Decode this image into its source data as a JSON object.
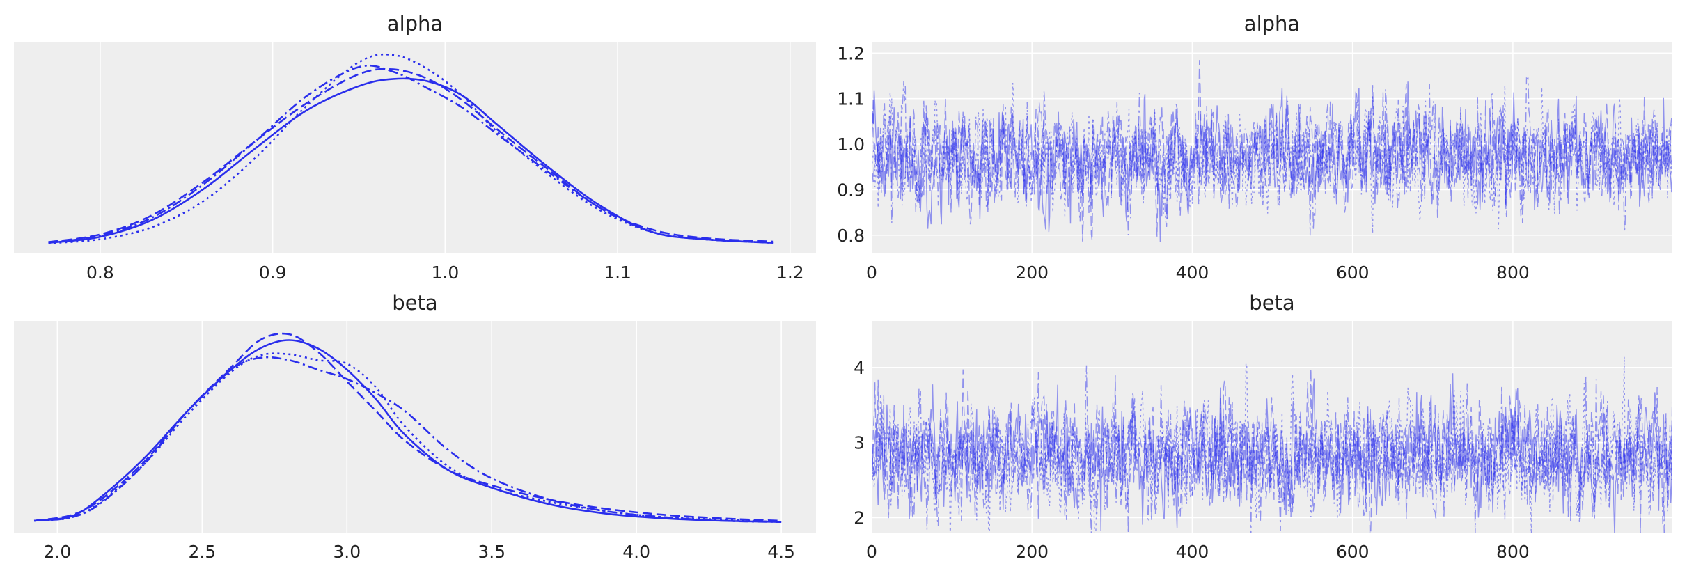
{
  "chart_data": [
    {
      "type": "line",
      "title": "alpha",
      "xlabel": "",
      "ylabel": "",
      "xlim": [
        0.75,
        1.215
      ],
      "x_ticks": [
        0.8,
        0.9,
        1.0,
        1.1,
        1.2
      ],
      "x_tick_labels": [
        "0.8",
        "0.9",
        "1.0",
        "1.1",
        "1.2"
      ],
      "y_ticks_shown": false,
      "grid": "vertical",
      "color": "#2a2eec",
      "series": [
        {
          "line_style": "solid",
          "x": [
            0.77,
            0.8,
            0.83,
            0.86,
            0.89,
            0.92,
            0.95,
            0.97,
            0.99,
            1.01,
            1.03,
            1.06,
            1.09,
            1.12,
            1.15,
            1.19
          ],
          "density": [
            0.05,
            0.3,
            1.0,
            2.3,
            4.0,
            5.6,
            6.6,
            6.9,
            6.8,
            6.2,
            5.0,
            3.2,
            1.6,
            0.5,
            0.2,
            0.05
          ]
        },
        {
          "line_style": "dashed",
          "x": [
            0.77,
            0.8,
            0.83,
            0.86,
            0.89,
            0.92,
            0.95,
            0.97,
            0.99,
            1.01,
            1.03,
            1.06,
            1.09,
            1.12,
            1.15,
            1.19
          ],
          "density": [
            0.08,
            0.4,
            1.2,
            2.6,
            4.3,
            5.9,
            7.1,
            7.3,
            6.9,
            6.0,
            4.8,
            3.1,
            1.5,
            0.6,
            0.25,
            0.1
          ]
        },
        {
          "line_style": "dotted",
          "x": [
            0.77,
            0.8,
            0.83,
            0.86,
            0.89,
            0.92,
            0.95,
            0.97,
            0.99,
            1.01,
            1.03,
            1.06,
            1.09,
            1.12,
            1.15,
            1.19
          ],
          "density": [
            0.03,
            0.2,
            0.7,
            1.8,
            3.6,
            5.8,
            7.6,
            7.9,
            7.3,
            6.2,
            4.7,
            2.9,
            1.4,
            0.5,
            0.2,
            0.05
          ]
        },
        {
          "line_style": "dashdot",
          "x": [
            0.77,
            0.8,
            0.83,
            0.86,
            0.89,
            0.92,
            0.95,
            0.97,
            0.99,
            1.01,
            1.03,
            1.06,
            1.09,
            1.12,
            1.15,
            1.19
          ],
          "density": [
            0.05,
            0.35,
            1.1,
            2.5,
            4.3,
            6.2,
            7.4,
            7.2,
            6.5,
            5.7,
            4.6,
            3.0,
            1.5,
            0.5,
            0.2,
            0.05
          ]
        }
      ]
    },
    {
      "type": "line",
      "title": "alpha",
      "xlabel": "",
      "ylabel": "",
      "xlim": [
        0,
        999
      ],
      "ylim": [
        0.76,
        1.225
      ],
      "x_ticks": [
        0,
        200,
        400,
        600,
        800
      ],
      "x_tick_labels": [
        "0",
        "200",
        "400",
        "600",
        "800"
      ],
      "y_ticks": [
        0.8,
        0.9,
        1.0,
        1.1,
        1.2
      ],
      "y_tick_labels": [
        "0.8",
        "0.9",
        "1.0",
        "1.1",
        "1.2"
      ],
      "grid": "both",
      "color": "#2a2eec",
      "series": [
        {
          "line_style": "solid",
          "n_draws": 1000,
          "center": 0.97,
          "spread": 0.055
        },
        {
          "line_style": "dashed",
          "n_draws": 1000,
          "center": 0.97,
          "spread": 0.055
        },
        {
          "line_style": "dotted",
          "n_draws": 1000,
          "center": 0.97,
          "spread": 0.055
        },
        {
          "line_style": "dashdot",
          "n_draws": 1000,
          "center": 0.97,
          "spread": 0.055
        }
      ]
    },
    {
      "type": "line",
      "title": "beta",
      "xlabel": "",
      "ylabel": "",
      "xlim": [
        1.85,
        4.62
      ],
      "x_ticks": [
        2.0,
        2.5,
        3.0,
        3.5,
        4.0,
        4.5
      ],
      "x_tick_labels": [
        "2.0",
        "2.5",
        "3.0",
        "3.5",
        "4.0",
        "4.5"
      ],
      "y_ticks_shown": false,
      "grid": "vertical",
      "color": "#2a2eec",
      "series": [
        {
          "line_style": "solid",
          "x": [
            1.92,
            2.05,
            2.15,
            2.3,
            2.45,
            2.6,
            2.7,
            2.8,
            2.9,
            3.0,
            3.1,
            3.2,
            3.35,
            3.5,
            3.7,
            3.9,
            4.1,
            4.3,
            4.5
          ],
          "density": [
            0.02,
            0.06,
            0.22,
            0.55,
            0.95,
            1.3,
            1.48,
            1.55,
            1.48,
            1.3,
            1.05,
            0.75,
            0.45,
            0.3,
            0.16,
            0.08,
            0.04,
            0.02,
            0.01
          ]
        },
        {
          "line_style": "dashed",
          "x": [
            1.92,
            2.05,
            2.15,
            2.3,
            2.45,
            2.6,
            2.7,
            2.8,
            2.9,
            3.0,
            3.1,
            3.2,
            3.35,
            3.5,
            3.7,
            3.9,
            4.1,
            4.3,
            4.5
          ],
          "density": [
            0.02,
            0.07,
            0.2,
            0.52,
            0.95,
            1.32,
            1.55,
            1.6,
            1.45,
            1.2,
            0.95,
            0.7,
            0.45,
            0.32,
            0.2,
            0.12,
            0.07,
            0.04,
            0.02
          ]
        },
        {
          "line_style": "dotted",
          "x": [
            1.92,
            2.05,
            2.15,
            2.3,
            2.45,
            2.6,
            2.7,
            2.8,
            2.9,
            3.0,
            3.1,
            3.2,
            3.35,
            3.5,
            3.7,
            3.9,
            4.1,
            4.3,
            4.5
          ],
          "density": [
            0.02,
            0.05,
            0.18,
            0.5,
            0.92,
            1.28,
            1.42,
            1.43,
            1.38,
            1.35,
            1.15,
            0.82,
            0.48,
            0.3,
            0.18,
            0.1,
            0.05,
            0.03,
            0.01
          ]
        },
        {
          "line_style": "dashdot",
          "x": [
            1.92,
            2.05,
            2.15,
            2.3,
            2.45,
            2.6,
            2.7,
            2.8,
            2.9,
            3.0,
            3.1,
            3.2,
            3.35,
            3.5,
            3.7,
            3.9,
            4.1,
            4.3,
            4.5
          ],
          "density": [
            0.02,
            0.05,
            0.17,
            0.5,
            0.95,
            1.3,
            1.4,
            1.38,
            1.3,
            1.22,
            1.1,
            0.95,
            0.62,
            0.38,
            0.2,
            0.1,
            0.05,
            0.02,
            0.01
          ]
        }
      ]
    },
    {
      "type": "line",
      "title": "beta",
      "xlabel": "",
      "ylabel": "",
      "xlim": [
        0,
        999
      ],
      "ylim": [
        1.8,
        4.62
      ],
      "x_ticks": [
        0,
        200,
        400,
        600,
        800
      ],
      "x_tick_labels": [
        "0",
        "200",
        "400",
        "600",
        "800"
      ],
      "y_ticks": [
        2,
        3,
        4
      ],
      "y_tick_labels": [
        "2",
        "3",
        "4"
      ],
      "grid": "both",
      "color": "#2a2eec",
      "series": [
        {
          "line_style": "solid",
          "n_draws": 1000,
          "center": 2.83,
          "spread": 0.36
        },
        {
          "line_style": "dashed",
          "n_draws": 1000,
          "center": 2.83,
          "spread": 0.36
        },
        {
          "line_style": "dotted",
          "n_draws": 1000,
          "center": 2.83,
          "spread": 0.36
        },
        {
          "line_style": "dashdot",
          "n_draws": 1000,
          "center": 2.83,
          "spread": 0.36
        }
      ]
    }
  ]
}
